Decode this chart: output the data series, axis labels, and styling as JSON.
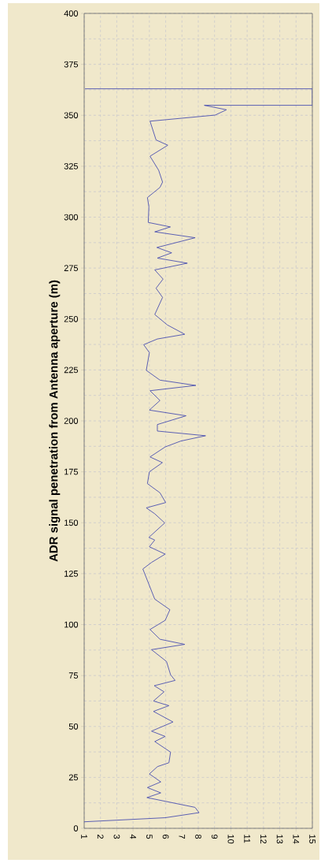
{
  "chart_data": {
    "type": "line",
    "ylabel": "ADR signal penetration from Antenna aperture (m)",
    "xlim": [
      1,
      15
    ],
    "xticks": [
      1,
      2,
      3,
      4,
      5,
      6,
      7,
      8,
      9,
      10,
      11,
      12,
      13,
      14,
      15
    ],
    "ylim": [
      0,
      400
    ],
    "yticks": [
      0,
      25,
      50,
      75,
      100,
      125,
      150,
      175,
      200,
      225,
      250,
      275,
      300,
      325,
      350,
      375,
      400
    ],
    "grid": true,
    "marker": "none",
    "line_style": "solid",
    "series": [
      {
        "color": "#4a4fb0",
        "x": [
          1,
          5.97,
          8.05,
          7.8,
          4.85,
          5.7,
          4.88,
          5.7,
          5.0,
          5.5,
          6.2,
          6.3,
          5.33,
          5.97,
          5.13,
          6.45,
          5.25,
          6.2,
          5.25,
          5.9,
          5.3,
          6.58,
          6.3,
          6.05,
          5.13,
          7.17,
          5.65,
          5.04,
          5.97,
          6.26,
          5.33,
          4.6,
          5.13,
          5.97,
          5.0,
          5.33,
          4.97,
          5.94,
          5.33,
          4.81,
          6.0,
          5.65,
          4.88,
          5.0,
          5.8,
          5.04,
          5.97,
          6.93,
          8.45,
          5.49,
          5.49,
          7.25,
          5.0,
          5.65,
          5.04,
          7.85,
          5.65,
          4.81,
          5.0,
          4.65,
          5.49,
          7.17,
          6.1,
          5.33,
          5.81,
          5.41,
          5.84,
          5.33,
          7.33,
          5.49,
          6.37,
          5.46,
          7.81,
          5.33,
          6.29,
          4.93,
          4.97,
          4.88,
          5.65,
          5.81,
          5.57,
          5.04,
          6.13,
          5.41,
          5.04,
          9.04,
          9.73,
          8.37,
          15,
          15,
          1.05
        ],
        "values": [
          3.2,
          5.2,
          7.7,
          10.3,
          15.1,
          17.4,
          20,
          22.8,
          26.7,
          30.3,
          32.2,
          37.4,
          42.6,
          45.1,
          47.7,
          52.2,
          57.4,
          60.2,
          62.5,
          67,
          70,
          72.6,
          75.4,
          81.9,
          87.7,
          90.3,
          92.8,
          97.6,
          102.1,
          107.3,
          112.5,
          127.3,
          130.5,
          134.6,
          138.2,
          141.5,
          142.8,
          149.9,
          154.4,
          157.3,
          159.9,
          164.7,
          169.2,
          175,
          179.5,
          182.3,
          187.2,
          190.1,
          192.7,
          195,
          198.2,
          202.5,
          205.3,
          210,
          214.8,
          217.4,
          220,
          224.8,
          233.5,
          237.4,
          240.2,
          242.5,
          247.1,
          252.2,
          260.6,
          265.1,
          269.6,
          274.1,
          277.4,
          279.9,
          282.5,
          285.1,
          289.9,
          292.8,
          295.2,
          297.4,
          305.1,
          309.6,
          314.6,
          317.2,
          323,
          329.9,
          335.3,
          337.9,
          347.1,
          350.1,
          352.7,
          354.9,
          354.9,
          363,
          363
        ]
      }
    ]
  }
}
